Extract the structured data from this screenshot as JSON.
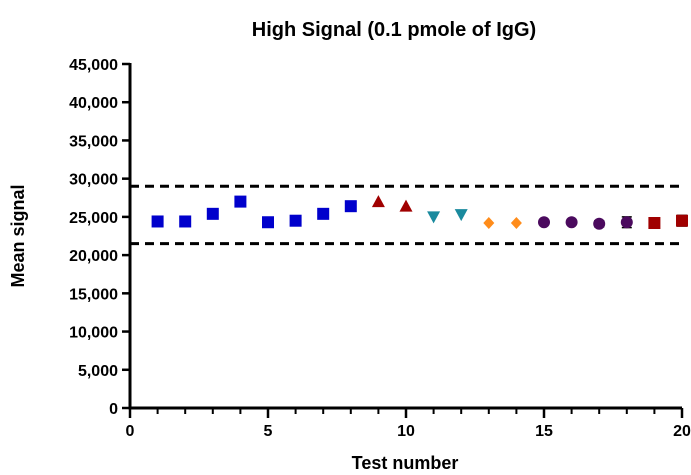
{
  "chart_data": {
    "type": "scatter",
    "title": "High Signal (0.1 pmole of IgG)",
    "xlabel": "Test number",
    "ylabel": "Mean signal",
    "xlim": [
      0,
      20
    ],
    "ylim": [
      0,
      45000
    ],
    "x_ticks": [
      0,
      5,
      10,
      15,
      20
    ],
    "x_tick_labels": [
      "0",
      "5",
      "10",
      "15",
      "20"
    ],
    "y_ticks": [
      0,
      5000,
      10000,
      15000,
      20000,
      25000,
      30000,
      35000,
      40000,
      45000
    ],
    "y_tick_labels": [
      "0",
      "5,000",
      "10,000",
      "15,000",
      "20,000",
      "25,000",
      "30,000",
      "35,000",
      "40,000",
      "45,000"
    ],
    "grid": false,
    "legend": "none",
    "reference_lines": [
      {
        "y": 29000,
        "style": "dashed",
        "color": "#000000"
      },
      {
        "y": 21500,
        "style": "dashed",
        "color": "#000000"
      }
    ],
    "series": [
      {
        "marker": "square",
        "color": "#0000cc",
        "x": [
          1,
          2,
          3,
          4,
          5,
          6,
          7,
          8
        ],
        "y": [
          24400,
          24400,
          25400,
          27000,
          24300,
          24500,
          25400,
          26400
        ]
      },
      {
        "marker": "triangle-up",
        "color": "#a00000",
        "x": [
          9,
          10
        ],
        "y": [
          27000,
          26400
        ]
      },
      {
        "marker": "triangle-down",
        "color": "#1a8a9e",
        "x": [
          11,
          12
        ],
        "y": [
          25000,
          25300
        ]
      },
      {
        "marker": "diamond",
        "color": "#ff8c1a",
        "x": [
          13,
          14
        ],
        "y": [
          24200,
          24200
        ]
      },
      {
        "marker": "circle",
        "color": "#4b0a5e",
        "x": [
          15,
          16,
          17,
          18
        ],
        "y": [
          24300,
          24300,
          24100,
          24300
        ],
        "err": [
          0,
          0,
          400,
          700
        ]
      },
      {
        "marker": "square",
        "color": "#a00000",
        "x": [
          19,
          20
        ],
        "y": [
          24200,
          24500
        ],
        "err": [
          500,
          700
        ]
      }
    ]
  }
}
